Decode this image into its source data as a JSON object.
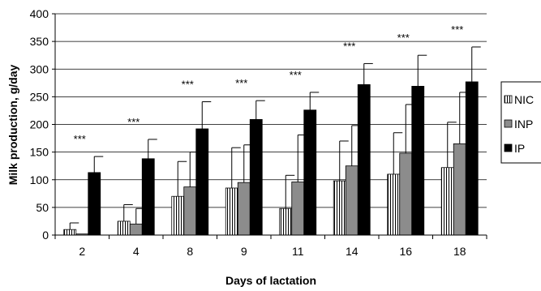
{
  "chart_data": {
    "type": "bar",
    "xlabel": "Days of lactation",
    "ylabel": "Milk production, g/day",
    "categories": [
      "2",
      "4",
      "8",
      "9",
      "11",
      "14",
      "16",
      "18"
    ],
    "ylim": [
      0,
      400
    ],
    "yticks": [
      "0",
      "50",
      "100",
      "150",
      "200",
      "250",
      "300",
      "350",
      "400"
    ],
    "grid": true,
    "legend_position": "right",
    "series": [
      {
        "name": "NIC",
        "values": [
          10,
          25,
          70,
          85,
          48,
          98,
          110,
          122
        ],
        "error": [
          12,
          30,
          63,
          73,
          60,
          72,
          75,
          82
        ],
        "pattern": "vertical-stripes",
        "color": "#ffffff"
      },
      {
        "name": "INP",
        "values": [
          2,
          20,
          87,
          95,
          96,
          125,
          148,
          165
        ],
        "error": [
          0,
          28,
          63,
          68,
          85,
          73,
          88,
          93
        ],
        "pattern": "solid",
        "color": "#8c8c8c"
      },
      {
        "name": "IP",
        "values": [
          113,
          138,
          192,
          209,
          226,
          272,
          269,
          277
        ],
        "error": [
          29,
          35,
          49,
          34,
          32,
          38,
          56,
          63
        ],
        "pattern": "solid",
        "color": "#000000"
      }
    ],
    "annotations": [
      "***",
      "***",
      "***",
      "***",
      "***",
      "***",
      "***",
      "***"
    ]
  }
}
